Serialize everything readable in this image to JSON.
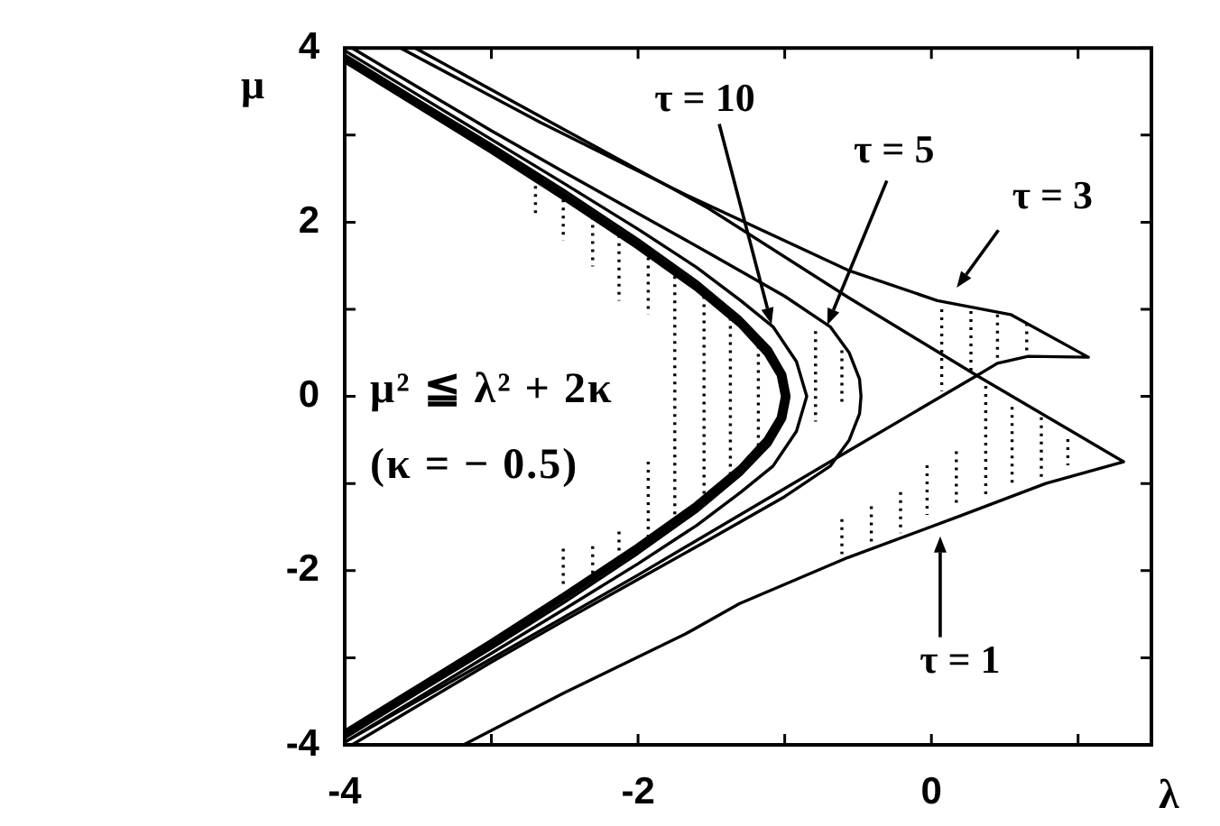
{
  "chart_data": {
    "type": "line",
    "xlabel": "λ",
    "ylabel": "μ",
    "xlim": [
      -4,
      1.5
    ],
    "ylim": [
      -4,
      4
    ],
    "xticks": [
      -4,
      {
        "value": -3,
        "label": null
      },
      -2,
      {
        "value": -1,
        "label": null
      },
      0,
      {
        "value": 1,
        "label": null
      }
    ],
    "yticks": [
      -4,
      {
        "value": -3,
        "label": null
      },
      -2,
      {
        "value": -1,
        "label": null
      },
      0,
      {
        "value": 1,
        "label": null
      },
      2,
      {
        "value": 3,
        "label": null
      },
      4
    ],
    "series": [
      {
        "color": "#000000",
        "x": [
          -4,
          -3.5,
          -3,
          -2.5,
          -2,
          -1.6,
          -1.3,
          -1.12,
          -1.03,
          -1,
          -1.03,
          -1.12,
          -1.3,
          -1.6,
          -2,
          -2.5,
          -3,
          -3.5,
          -4
        ],
        "values": [
          3.87,
          3.35,
          2.83,
          2.29,
          1.73,
          1.25,
          0.83,
          0.5,
          0.25,
          0,
          -0.25,
          -0.5,
          -0.83,
          -1.25,
          -1.73,
          -2.29,
          -2.83,
          -3.35,
          -3.87
        ]
      },
      {
        "color": "#000000",
        "x": [
          -4,
          -3.5,
          -3,
          -2.5,
          -2,
          -1.6,
          -1.3,
          -1.1,
          -1,
          -0.97,
          -1,
          -1.1,
          -1.3,
          -1.6,
          -2,
          -2.5,
          -3,
          -3.5,
          -4
        ],
        "values": [
          3.92,
          3.4,
          2.89,
          2.36,
          1.8,
          1.32,
          0.9,
          0.55,
          0.26,
          0,
          -0.26,
          -0.55,
          -0.9,
          -1.32,
          -1.8,
          -2.36,
          -2.89,
          -3.4,
          -3.92
        ]
      },
      {
        "color": "#000000",
        "x": [
          -4,
          -3.5,
          -3,
          -2.5,
          -2,
          -1.6,
          -1.3,
          -1.08,
          -0.92,
          -0.85,
          -0.92,
          -1.08,
          -1.3,
          -1.6,
          -2,
          -2.5,
          -3,
          -3.5,
          -4
        ],
        "values": [
          3.97,
          3.46,
          2.95,
          2.44,
          1.92,
          1.48,
          1.1,
          0.8,
          0.4,
          0,
          -0.4,
          -0.8,
          -1.1,
          -1.48,
          -1.92,
          -2.44,
          -2.95,
          -3.46,
          -3.97
        ]
      },
      {
        "color": "#000000",
        "x": [
          -3.95,
          -3.5,
          -3,
          -2.5,
          -2,
          -1.5,
          -1,
          -0.69,
          -0.56,
          -0.49,
          -0.48,
          -0.49,
          -0.56,
          -0.69,
          -1,
          -1.5,
          -2,
          -2.5,
          -3,
          -3.5,
          -3.95
        ],
        "values": [
          4,
          3.55,
          3.05,
          2.57,
          2.1,
          1.63,
          1.15,
          0.8,
          0.5,
          0.2,
          0,
          -0.2,
          -0.5,
          -0.8,
          -1.15,
          -1.63,
          -2.1,
          -2.57,
          -3.05,
          -3.55,
          -4
        ]
      },
      {
        "color": "#000000",
        "x": [
          -3.62,
          -2.66,
          -1.68,
          -0.57,
          0.04,
          0.54,
          1.07,
          0.66,
          0.45,
          0.31,
          -0.57,
          -2,
          -4
        ],
        "values": [
          4,
          3.14,
          2.32,
          1.45,
          1.1,
          0.94,
          0.45,
          0.46,
          0.38,
          0.24,
          -0.63,
          -2.05,
          -3.97
        ]
      },
      {
        "color": "#000000",
        "x": [
          -3.19,
          -2.5,
          -1.68,
          -1.31,
          -0.57,
          0.2,
          0.78,
          1.31,
          0.31,
          -0.57,
          -1.52,
          -2.5,
          -3.52
        ],
        "values": [
          -4,
          -3.4,
          -2.73,
          -2.38,
          -1.85,
          -1.37,
          -1,
          -0.75,
          0.24,
          1.14,
          2.16,
          3.06,
          4
        ]
      }
    ],
    "annotations": [
      {
        "text": "τ = 10",
        "x": -1.09,
        "y": 0.83
      },
      {
        "text": "τ = 5",
        "x": -0.71,
        "y": 0.82
      },
      {
        "text": "τ = 3",
        "x": 0.1,
        "y": 1.08
      },
      {
        "text": "τ = 1",
        "x": 0.06,
        "y": -1.46
      },
      "μ² ≦ λ² + 2κ",
      "(κ = − 0.5)"
    ]
  }
}
